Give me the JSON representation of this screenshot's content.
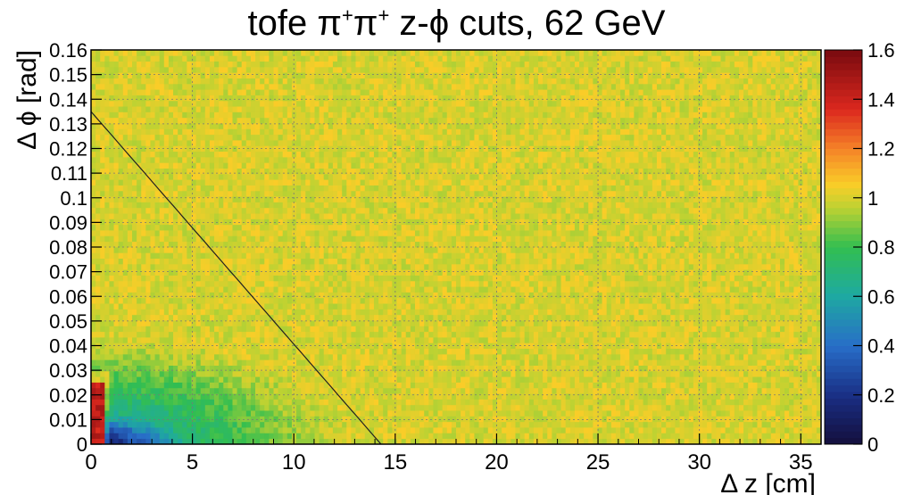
{
  "chart_data": {
    "type": "heatmap",
    "title": {
      "prefix": "tofe ",
      "pi": "π",
      "sup": "+",
      "mid": "  z-",
      "phi": "ϕ",
      "suffix": " cuts, 62 GeV"
    },
    "xlabel": "Δ z [cm]",
    "ylabel": "Δ ϕ [rad]",
    "xlim": [
      0,
      36
    ],
    "ylim": [
      0,
      0.16
    ],
    "x_ticks": [
      "0",
      "5",
      "10",
      "15",
      "20",
      "25",
      "30",
      "35"
    ],
    "y_ticks": [
      "0",
      "0.01",
      "0.02",
      "0.03",
      "0.04",
      "0.05",
      "0.06",
      "0.07",
      "0.08",
      "0.09",
      "0.1",
      "0.11",
      "0.12",
      "0.13",
      "0.14",
      "0.15",
      "0.16"
    ],
    "colorbar": {
      "range": [
        0,
        1.6
      ],
      "ticks": [
        "0",
        "0.2",
        "0.4",
        "0.6",
        "0.8",
        "1",
        "1.2",
        "1.4",
        "1.6"
      ]
    },
    "grid": true,
    "cut_line": {
      "x": [
        0,
        14.3
      ],
      "y": [
        0.135,
        0
      ]
    }
  }
}
